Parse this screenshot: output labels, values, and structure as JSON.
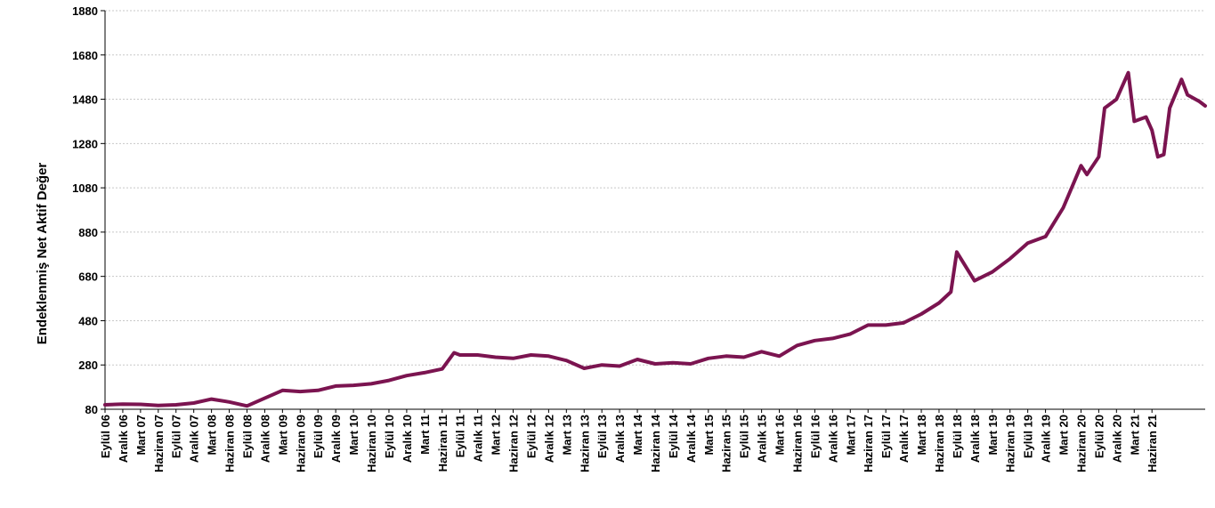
{
  "chart_data": {
    "type": "line",
    "title": "",
    "xlabel": "",
    "ylabel": "Endeklenmiş Net Aktif Değer",
    "ylim": [
      80,
      1880
    ],
    "yticks": [
      80,
      280,
      480,
      680,
      880,
      1080,
      1280,
      1480,
      1680,
      1880
    ],
    "grid": true,
    "line_color": "#7b1450",
    "x_tick_labels": [
      "Eylül 06",
      "Aralık 06",
      "Mart 07",
      "Haziran 07",
      "Eylül 07",
      "Aralık 07",
      "Mart 08",
      "Haziran 08",
      "Eylül 08",
      "Aralık 08",
      "Mart 09",
      "Haziran 09",
      "Eylül 09",
      "Aralık 09",
      "Mart 10",
      "Haziran 10",
      "Eylül 10",
      "Aralık 10",
      "Mart 11",
      "Haziran 11",
      "Eylül 11",
      "Aralık 11",
      "Mart 12",
      "Haziran 12",
      "Eylül 12",
      "Aralık 12",
      "Mart 13",
      "Haziran 13",
      "Eylül 13",
      "Aralık 13",
      "Mart 14",
      "Haziran 14",
      "Eylül 14",
      "Aralık 14",
      "Mart 15",
      "Haziran 15",
      "Eylül 15",
      "Aralık 15",
      "Mart 16",
      "Haziran 16",
      "Eylül 16",
      "Aralık 16",
      "Mart 17",
      "Haziran 17",
      "Eylül 17",
      "Aralık 17",
      "Mart 18",
      "Haziran 18",
      "Eylül 18",
      "Aralık 18",
      "Mart 19",
      "Haziran 19",
      "Eylül 19",
      "Aralık 19",
      "Mart 20",
      "Haziran 20",
      "Eylül 20",
      "Aralık 20",
      "Mart 21",
      "Haziran 21"
    ],
    "series": [
      {
        "points": [
          [
            "2006-09",
            100
          ],
          [
            "2006-12",
            103
          ],
          [
            "2007-03",
            102
          ],
          [
            "2007-06",
            97
          ],
          [
            "2007-09",
            100
          ],
          [
            "2007-12",
            108
          ],
          [
            "2008-03",
            126
          ],
          [
            "2008-06",
            113
          ],
          [
            "2008-09",
            95
          ],
          [
            "2008-12",
            130
          ],
          [
            "2009-03",
            165
          ],
          [
            "2009-06",
            160
          ],
          [
            "2009-09",
            165
          ],
          [
            "2009-12",
            185
          ],
          [
            "2010-03",
            188
          ],
          [
            "2010-06",
            195
          ],
          [
            "2010-09",
            210
          ],
          [
            "2010-12",
            232
          ],
          [
            "2011-03",
            245
          ],
          [
            "2011-06",
            262
          ],
          [
            "2011-08",
            335
          ],
          [
            "2011-09",
            325
          ],
          [
            "2011-12",
            325
          ],
          [
            "2012-03",
            315
          ],
          [
            "2012-06",
            310
          ],
          [
            "2012-09",
            325
          ],
          [
            "2012-12",
            320
          ],
          [
            "2013-03",
            300
          ],
          [
            "2013-06",
            265
          ],
          [
            "2013-09",
            280
          ],
          [
            "2013-12",
            275
          ],
          [
            "2014-03",
            305
          ],
          [
            "2014-06",
            285
          ],
          [
            "2014-09",
            290
          ],
          [
            "2014-12",
            285
          ],
          [
            "2015-03",
            310
          ],
          [
            "2015-06",
            320
          ],
          [
            "2015-09",
            315
          ],
          [
            "2015-12",
            340
          ],
          [
            "2016-03",
            320
          ],
          [
            "2016-06",
            368
          ],
          [
            "2016-09",
            390
          ],
          [
            "2016-12",
            400
          ],
          [
            "2017-03",
            420
          ],
          [
            "2017-06",
            460
          ],
          [
            "2017-09",
            460
          ],
          [
            "2017-12",
            470
          ],
          [
            "2018-03",
            510
          ],
          [
            "2018-06",
            560
          ],
          [
            "2018-08",
            610
          ],
          [
            "2018-09",
            790
          ],
          [
            "2018-12",
            660
          ],
          [
            "2019-03",
            700
          ],
          [
            "2019-06",
            760
          ],
          [
            "2019-09",
            830
          ],
          [
            "2019-12",
            860
          ],
          [
            "2020-03",
            990
          ],
          [
            "2020-06",
            1180
          ],
          [
            "2020-07",
            1140
          ],
          [
            "2020-09",
            1220
          ],
          [
            "2020-10",
            1440
          ],
          [
            "2020-12",
            1480
          ],
          [
            "2021-02",
            1600
          ],
          [
            "2021-03",
            1380
          ],
          [
            "2021-05",
            1400
          ],
          [
            "2021-06",
            1340
          ],
          [
            "2021-07",
            1220
          ],
          [
            "2021-08",
            1230
          ],
          [
            "2021-09",
            1440
          ],
          [
            "2021-11",
            1570
          ],
          [
            "2021-12",
            1500
          ],
          [
            "2022-02",
            1470
          ],
          [
            "2022-03",
            1450
          ]
        ]
      }
    ]
  }
}
